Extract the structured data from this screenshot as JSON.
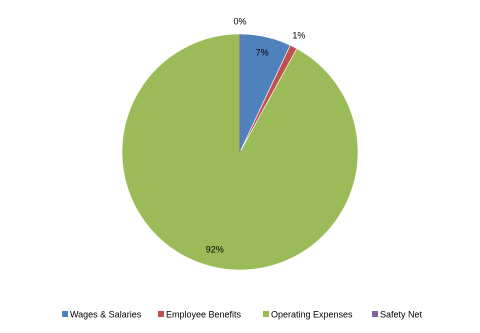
{
  "chart_data": {
    "type": "pie",
    "categories": [
      "Wages & Salaries",
      "Employee Benefits",
      "Operating Expenses",
      "Safety Net"
    ],
    "values": [
      7,
      1,
      92,
      0
    ],
    "value_labels": [
      "7%",
      "1%",
      "92%",
      "0%"
    ],
    "colors": [
      "#4f81bd",
      "#c0504d",
      "#9bbb59",
      "#8064a2"
    ],
    "legend": "bottom"
  }
}
